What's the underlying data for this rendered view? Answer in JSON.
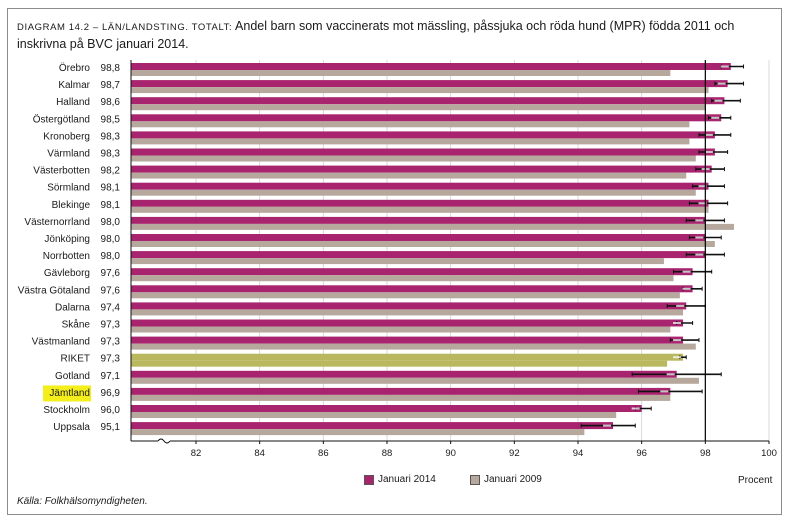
{
  "title": {
    "prefix": "DIAGRAM 14.2 – LÄN/LANDSTING. TOTALT:",
    "text": "Andel barn som vaccinerats mot mässling, påssjuka och röda hund (MPR) födda 2011 och inskrivna på BVC januari 2014."
  },
  "unit": "Procent",
  "source": "Källa: Folkhälsomyndigheten.",
  "colors": {
    "series_2014": "#a8246f",
    "series_2009": "#b7a89d",
    "riket": "#b9b85f",
    "highlight": "#f3ee1c",
    "reference_line": "#000000"
  },
  "chart_data": {
    "type": "bar",
    "orientation": "horizontal",
    "xlim": [
      80,
      100
    ],
    "xticks": [
      82,
      84,
      86,
      88,
      90,
      92,
      94,
      96,
      98,
      100
    ],
    "reference_line": 98,
    "categories": [
      "Örebro",
      "Kalmar",
      "Halland",
      "Östergötland",
      "Kronoberg",
      "Värmland",
      "Västerbotten",
      "Sörmland",
      "Blekinge",
      "Västernorrland",
      "Jönköping",
      "Norrbotten",
      "Gävleborg",
      "Västra Götaland",
      "Dalarna",
      "Skåne",
      "Västmanland",
      "RIKET",
      "Gotland",
      "Jämtland",
      "Stockholm",
      "Uppsala"
    ],
    "value_labels": [
      "98,8",
      "98,7",
      "98,6",
      "98,5",
      "98,3",
      "98,3",
      "98,2",
      "98,1",
      "98,1",
      "98,0",
      "98,0",
      "98,0",
      "97,6",
      "97,6",
      "97,4",
      "97,3",
      "97,3",
      "97,3",
      "97,1",
      "96,9",
      "96,0",
      "95,1"
    ],
    "highlighted_category": "Jämtland",
    "national_category": "RIKET",
    "legend_position": "bottom",
    "series": [
      {
        "name": "Januari 2014",
        "values": [
          98.8,
          98.7,
          98.6,
          98.5,
          98.3,
          98.3,
          98.2,
          98.1,
          98.1,
          98.0,
          98.0,
          98.0,
          97.6,
          97.6,
          97.4,
          97.3,
          97.3,
          97.3,
          97.1,
          96.9,
          96.0,
          95.1
        ],
        "ci_low": [
          98.5,
          98.3,
          98.2,
          98.1,
          97.8,
          97.8,
          97.7,
          97.6,
          97.5,
          97.4,
          97.5,
          97.4,
          97.0,
          97.3,
          96.8,
          97.1,
          96.9,
          97.2,
          95.7,
          95.9,
          95.8,
          94.1
        ],
        "ci_high": [
          99.2,
          99.2,
          99.1,
          98.8,
          98.8,
          98.7,
          98.6,
          98.6,
          98.7,
          98.6,
          98.5,
          98.6,
          98.2,
          97.9,
          98.0,
          97.6,
          97.8,
          97.4,
          98.5,
          97.9,
          96.3,
          95.8
        ]
      },
      {
        "name": "Januari 2009",
        "values": [
          96.9,
          98.1,
          98.0,
          97.5,
          97.5,
          97.7,
          97.4,
          97.7,
          98.1,
          98.9,
          98.3,
          96.7,
          97.0,
          97.2,
          97.3,
          96.9,
          97.7,
          96.8,
          97.8,
          96.9,
          95.2,
          94.2
        ]
      }
    ]
  }
}
